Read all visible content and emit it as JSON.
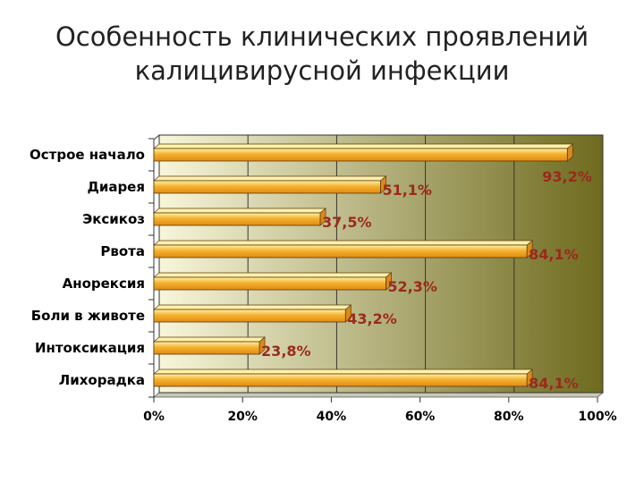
{
  "title_lines": [
    "Особенность клинических проявлений",
    "калицивирусной инфекции"
  ],
  "chart_data": {
    "type": "bar",
    "orientation": "horizontal",
    "title": "Особенность клинических проявлений калицивирусной инфекции",
    "categories": [
      "Острое начало",
      "Диарея",
      "Эксикоз",
      "Рвота",
      "Анорексия",
      "Боли в животе",
      "Интоксикация",
      "Лихорадка"
    ],
    "values": [
      93.2,
      51.1,
      37.5,
      84.1,
      52.3,
      43.2,
      23.8,
      84.1
    ],
    "data_labels": [
      "93,2%",
      "51,1%",
      "37,5%",
      "84,1%",
      "52,3%",
      "43,2%",
      "23,8%",
      "84,1%"
    ],
    "x_ticks": [
      "0%",
      "20%",
      "40%",
      "60%",
      "80%",
      "100%"
    ],
    "xlim": [
      0,
      100
    ],
    "xlabel": "",
    "ylabel": "",
    "grid": true,
    "legend": false,
    "bar_color": "#f5b12e",
    "bar_highlight": "#fff2a8",
    "plot_bg_left": "#f8f6da",
    "plot_bg_right": "#6e6a1e",
    "label_color": "#9b2a1c"
  }
}
